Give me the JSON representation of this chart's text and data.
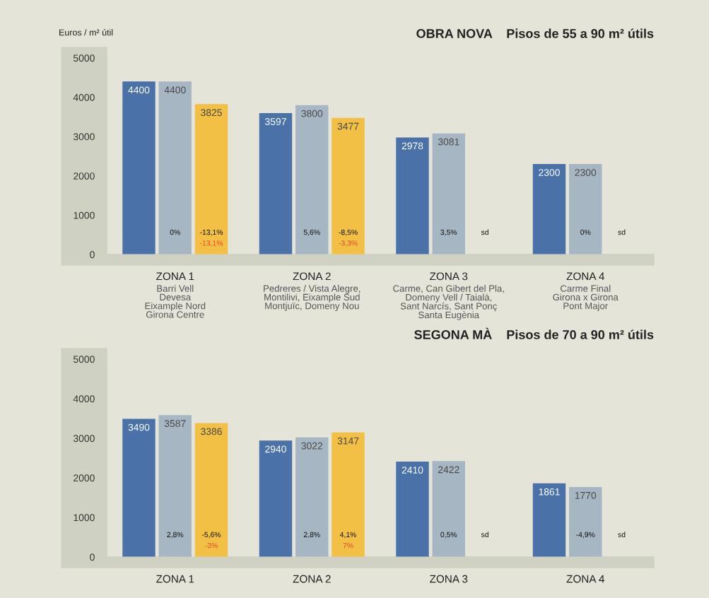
{
  "chart_data": [
    {
      "type": "bar",
      "title": "OBRA NOVA    Pisos de 55 a 90 m² útils",
      "ylabel": "Euros / m² útil",
      "categories": [
        "ZONA 1\nBarri Vell\nDevesa\nEixample Nord\nGirona Centre",
        "ZONA 2\nPedreres / Vista Alegre,\nMontilivi, Eixample Sud\nMontjuïc, Domeny Nou",
        "ZONA 3\nCarme, Can Gibert del Pla,\nDomeny Vell / Taialà,\nSant Narcís, Sant Ponç\nSanta Eugènia",
        "ZONA 4\nCarme Final\nGirona x Girona\nPont Major"
      ],
      "series": [
        {
          "color": "#4a72a9",
          "values": [
            4400,
            3597,
            2978,
            2300
          ]
        },
        {
          "color": "#a7b6c3",
          "values": [
            4400,
            3800,
            3081,
            2300
          ]
        },
        {
          "color": "#f2c045",
          "values": [
            3825,
            3477,
            null,
            null
          ]
        }
      ],
      "ylim": [
        0,
        5000
      ],
      "yticks": [
        0,
        1000,
        2000,
        3000,
        4000,
        5000
      ],
      "data_labels": true,
      "grid": false,
      "legend": false,
      "annotations": [
        "0%",
        "-13,1%",
        "-13,1%",
        "5,6%",
        "-8,5%",
        "-3,3%",
        "3,5%",
        "sd",
        "0%",
        "sd"
      ]
    },
    {
      "type": "bar",
      "title": "SEGONA MÀ    Pisos de 70 a 90 m² útils",
      "categories": [
        "ZONA 1",
        "ZONA 2",
        "ZONA 3",
        "ZONA 4"
      ],
      "series": [
        {
          "color": "#4a72a9",
          "values": [
            3490,
            2940,
            2410,
            1861
          ]
        },
        {
          "color": "#a7b6c3",
          "values": [
            3587,
            3022,
            2422,
            1770
          ]
        },
        {
          "color": "#f2c045",
          "values": [
            3386,
            3147,
            null,
            null
          ]
        }
      ],
      "ylim": [
        0,
        5000
      ],
      "yticks": [
        0,
        1000,
        2000,
        3000,
        4000,
        5000
      ],
      "data_labels": true,
      "grid": false,
      "legend": false,
      "annotations": [
        "2,8%",
        "-5,6%",
        "-3%",
        "2,8%",
        "4,1%",
        "7%",
        "0,5%",
        "sd",
        "-4,9%",
        "sd"
      ]
    }
  ]
}
